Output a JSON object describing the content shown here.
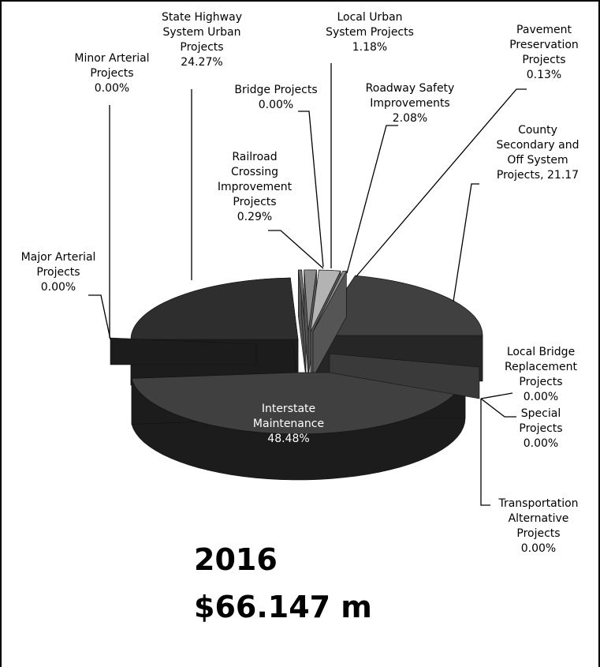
{
  "chart_data": {
    "type": "pie",
    "title": "",
    "year_label": "2016",
    "total_label": "$66.147 m",
    "slices": [
      {
        "name": "Interstate Maintenance",
        "value": 48.48,
        "label": "48.48%"
      },
      {
        "name": "County Secondary and Off System Projects",
        "value": 21.17,
        "label": "21.17"
      },
      {
        "name": "Local Bridge Replacement Projects",
        "value": 0.0,
        "label": "0.00%"
      },
      {
        "name": "Special Projects",
        "value": 0.0,
        "label": "0.00%"
      },
      {
        "name": "Transportation Alternative Projects",
        "value": 0.0,
        "label": "0.00%"
      },
      {
        "name": "Major Arterial Projects",
        "value": 0.0,
        "label": "0.00%"
      },
      {
        "name": "Minor Arterial Projects",
        "value": 0.0,
        "label": "0.00%"
      },
      {
        "name": "State Highway System Urban Projects",
        "value": 24.27,
        "label": "24.27%"
      },
      {
        "name": "Railroad Crossing Improvement Projects",
        "value": 0.29,
        "label": "0.29%"
      },
      {
        "name": "Bridge Projects",
        "value": 0.0,
        "label": "0.00%"
      },
      {
        "name": "Local Urban System Projects",
        "value": 1.18,
        "label": "1.18%"
      },
      {
        "name": "Roadway Safety Improvements",
        "value": 2.08,
        "label": "2.08%"
      },
      {
        "name": "Pavement Preservation Projects",
        "value": 0.13,
        "label": "0.13%"
      }
    ],
    "labels": {
      "interstate": [
        "Interstate",
        "Maintenance",
        "48.48%"
      ],
      "state_highway": [
        "State Highway",
        "System Urban",
        "Projects",
        "24.27%"
      ],
      "minor_arterial": [
        "Minor Arterial",
        "Projects",
        "0.00%"
      ],
      "major_arterial": [
        "Major Arterial",
        "Projects",
        "0.00%"
      ],
      "bridge": [
        "Bridge Projects",
        "0.00%"
      ],
      "local_urban": [
        "Local Urban",
        "System Projects",
        "1.18%"
      ],
      "pavement": [
        "Pavement",
        "Preservation",
        "Projects",
        "0.13%"
      ],
      "roadway_safety": [
        "Roadway Safety",
        "Improvements",
        "2.08%"
      ],
      "county_secondary": [
        "County",
        "Secondary and",
        "Off System",
        "Projects, 21.17"
      ],
      "railroad": [
        "Railroad",
        "Crossing",
        "Improvement",
        "Projects",
        "0.29%"
      ],
      "local_bridge": [
        "Local Bridge",
        "Replacement",
        "Projects",
        "0.00%"
      ],
      "special": [
        "Special",
        "Projects",
        "0.00%"
      ],
      "transportation_alt": [
        "Transportation",
        "Alternative",
        "Projects",
        "0.00%"
      ]
    },
    "colors": {
      "dark": "#2e2e2e",
      "dark_side": "#1c1c1c",
      "mid": "#404040",
      "mid_side": "#262626",
      "light1": "#8c8c8c",
      "light2": "#b3b3b3",
      "light3": "#6e6e6e"
    },
    "legend": "none",
    "grid": false
  }
}
